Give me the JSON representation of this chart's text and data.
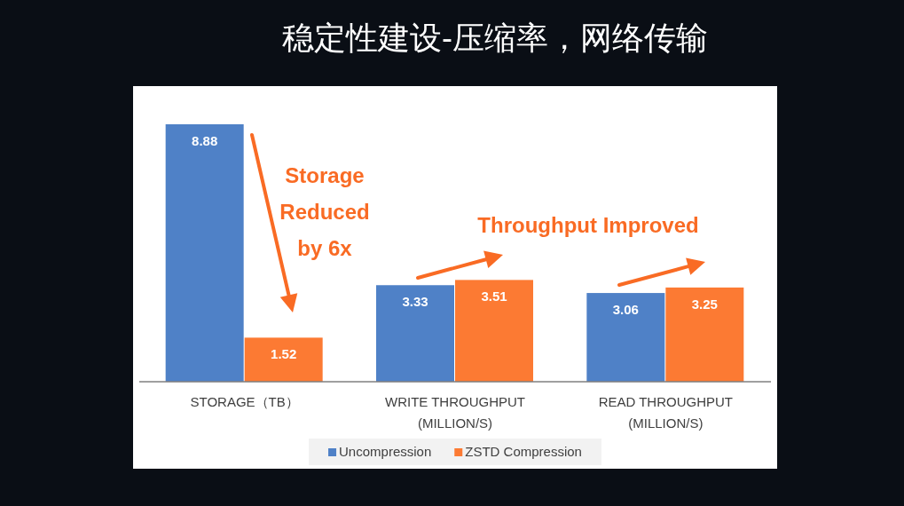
{
  "chart_data": {
    "type": "bar",
    "title": "稳定性建设-压缩率，网络传输",
    "categories": [
      "STORAGE（TB）",
      "WRITE THROUGHPUT (MILLION/S)",
      "READ THROUGHPUT (MILLION/S)"
    ],
    "series": [
      {
        "name": "Uncompression",
        "color": "#4f81c7",
        "values": [
          8.88,
          3.33,
          3.06
        ]
      },
      {
        "name": "ZSTD Compression",
        "color": "#fc7a33",
        "values": [
          1.52,
          3.51,
          3.25
        ]
      }
    ],
    "data_labels": true,
    "legend": "bottom",
    "annotations": [
      "Storage Reduced by 6x",
      "Throughput Improved"
    ]
  }
}
